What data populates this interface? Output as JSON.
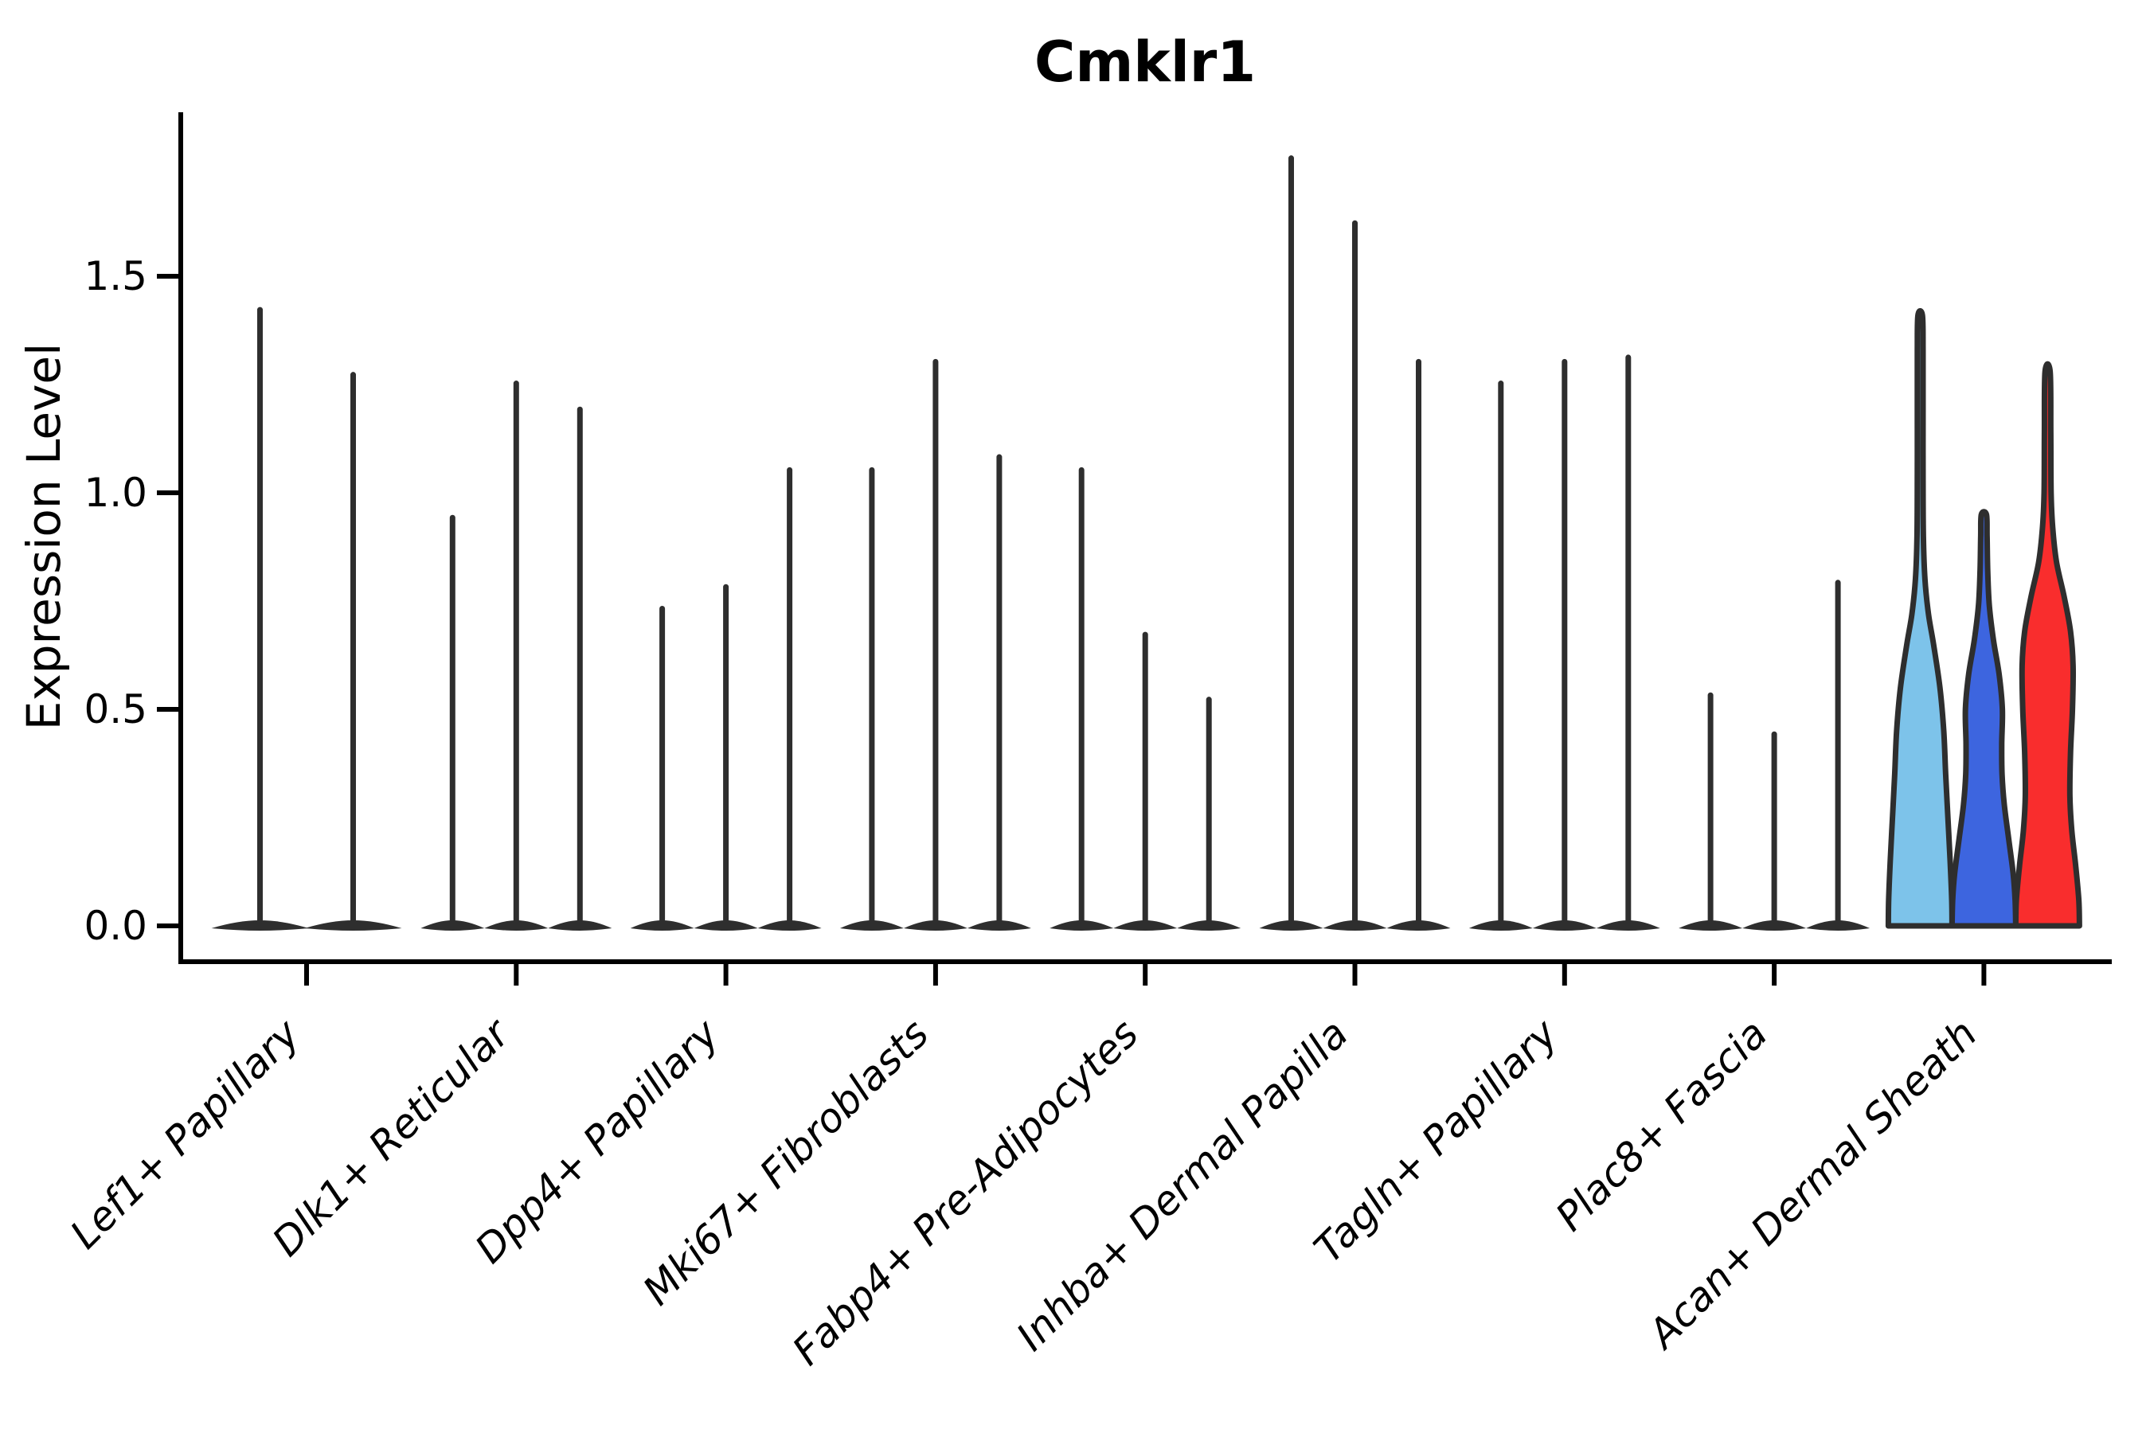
{
  "title": "Cmklr1",
  "axes": {
    "ylabel": "Expression Level",
    "ytick_labels": [
      "0.0",
      "0.5",
      "1.0",
      "1.5"
    ]
  },
  "chart_data": {
    "type": "violin",
    "title": "Cmklr1",
    "xlabel": "",
    "ylabel": "Expression Level",
    "ylim": [
      -0.08,
      1.88
    ],
    "yticks": [
      0.0,
      0.5,
      1.0,
      1.5
    ],
    "grid": false,
    "legend_position": "none",
    "line_color": "#2E2E2E",
    "categories": [
      "Lef1+ Papillary",
      "Dlk1+ Reticular",
      "Dpp4+ Papillary",
      "Mki67+ Fibroblasts",
      "Fabp4+ Pre-Adipocytes",
      "Inhba+ Dermal Papilla",
      "Tagln+ Papillary",
      "Plac8+ Fascia",
      "Acan+ Dermal Sheath"
    ],
    "groups": [
      {
        "category": "Lef1+ Papillary",
        "violins": [
          {
            "style": "line",
            "max": 1.43
          },
          {
            "style": "line",
            "max": 1.28
          }
        ]
      },
      {
        "category": "Dlk1+ Reticular",
        "violins": [
          {
            "style": "line",
            "max": 0.95
          },
          {
            "style": "line",
            "max": 1.26
          },
          {
            "style": "line",
            "max": 1.2
          }
        ]
      },
      {
        "category": "Dpp4+ Papillary",
        "violins": [
          {
            "style": "line",
            "max": 0.74
          },
          {
            "style": "line",
            "max": 0.79
          },
          {
            "style": "line",
            "max": 1.06
          }
        ]
      },
      {
        "category": "Mki67+ Fibroblasts",
        "violins": [
          {
            "style": "line",
            "max": 1.06
          },
          {
            "style": "line",
            "max": 1.31
          },
          {
            "style": "line",
            "max": 1.09
          }
        ]
      },
      {
        "category": "Fabp4+ Pre-Adipocytes",
        "violins": [
          {
            "style": "line",
            "max": 1.06
          },
          {
            "style": "line",
            "max": 0.68
          },
          {
            "style": "line",
            "max": 0.53
          }
        ]
      },
      {
        "category": "Inhba+ Dermal Papilla",
        "violins": [
          {
            "style": "line",
            "max": 1.78
          },
          {
            "style": "line",
            "max": 1.63
          },
          {
            "style": "line",
            "max": 1.31
          }
        ]
      },
      {
        "category": "Tagln+ Papillary",
        "violins": [
          {
            "style": "line",
            "max": 1.26
          },
          {
            "style": "line",
            "max": 1.31
          },
          {
            "style": "line",
            "max": 1.32
          }
        ]
      },
      {
        "category": "Plac8+ Fascia",
        "violins": [
          {
            "style": "line",
            "max": 0.54
          },
          {
            "style": "line",
            "max": 0.45
          },
          {
            "style": "line",
            "max": 0.8
          }
        ]
      },
      {
        "category": "Acan+ Dermal Sheath",
        "violins": [
          {
            "style": "filled",
            "max": 1.41,
            "fill": "#7DC3EA",
            "profile": [
              [
                0,
                1.0
              ],
              [
                0.06,
                0.99
              ],
              [
                0.15,
                0.94
              ],
              [
                0.25,
                0.87
              ],
              [
                0.35,
                0.8
              ],
              [
                0.45,
                0.74
              ],
              [
                0.55,
                0.62
              ],
              [
                0.65,
                0.42
              ],
              [
                0.72,
                0.26
              ],
              [
                0.8,
                0.15
              ],
              [
                0.9,
                0.1
              ],
              [
                1.05,
                0.09
              ],
              [
                1.2,
                0.09
              ],
              [
                1.33,
                0.09
              ],
              [
                1.41,
                0.07
              ]
            ]
          },
          {
            "style": "filled",
            "max": 0.95,
            "fill": "#3D65DF",
            "profile": [
              [
                0,
                1.0
              ],
              [
                0.06,
                0.98
              ],
              [
                0.12,
                0.92
              ],
              [
                0.2,
                0.78
              ],
              [
                0.28,
                0.64
              ],
              [
                0.35,
                0.57
              ],
              [
                0.42,
                0.56
              ],
              [
                0.5,
                0.58
              ],
              [
                0.58,
                0.48
              ],
              [
                0.66,
                0.3
              ],
              [
                0.74,
                0.17
              ],
              [
                0.82,
                0.12
              ],
              [
                0.9,
                0.1
              ],
              [
                0.95,
                0.08
              ]
            ]
          },
          {
            "style": "filled",
            "max": 1.28,
            "fill": "#F92D2D",
            "profile": [
              [
                0,
                1.0
              ],
              [
                0.06,
                0.98
              ],
              [
                0.14,
                0.88
              ],
              [
                0.22,
                0.76
              ],
              [
                0.3,
                0.7
              ],
              [
                0.4,
                0.72
              ],
              [
                0.5,
                0.78
              ],
              [
                0.6,
                0.8
              ],
              [
                0.68,
                0.72
              ],
              [
                0.76,
                0.52
              ],
              [
                0.84,
                0.28
              ],
              [
                0.92,
                0.16
              ],
              [
                1.0,
                0.11
              ],
              [
                1.14,
                0.1
              ],
              [
                1.28,
                0.08
              ]
            ]
          }
        ]
      }
    ]
  }
}
